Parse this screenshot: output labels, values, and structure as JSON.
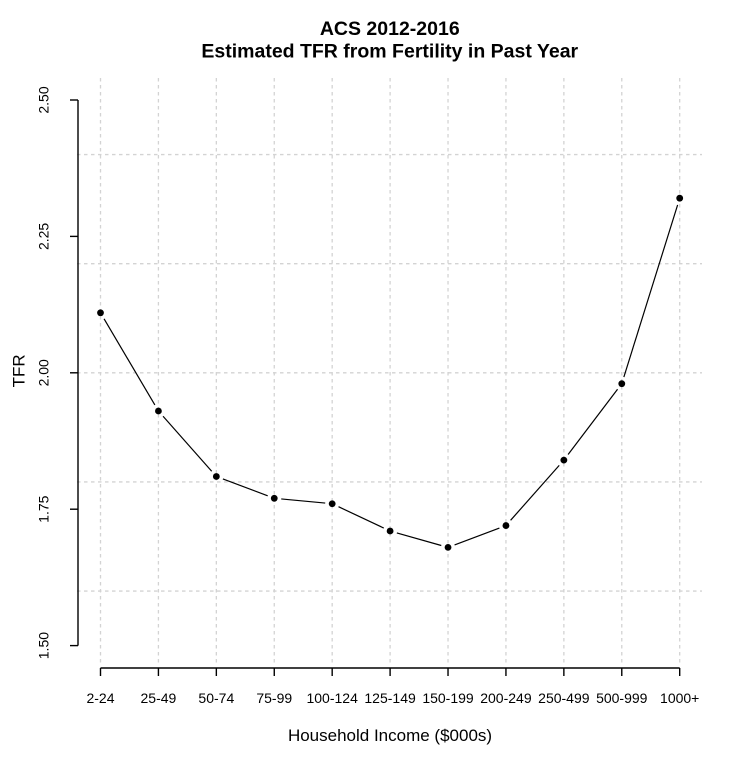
{
  "chart_data": {
    "type": "line",
    "title": "ACS 2012-2016",
    "subtitle": "Estimated TFR from Fertility in Past Year",
    "xlabel": "Household Income ($000s)",
    "ylabel": "TFR",
    "categories": [
      "2-24",
      "25-49",
      "50-74",
      "75-99",
      "100-124",
      "125-149",
      "150-199",
      "200-249",
      "250-499",
      "500-999",
      "1000+"
    ],
    "series": [
      {
        "name": "Estimated TFR",
        "values": [
          2.11,
          1.93,
          1.81,
          1.77,
          1.76,
          1.71,
          1.68,
          1.72,
          1.84,
          1.98,
          2.32
        ]
      }
    ],
    "ylim": [
      1.5,
      2.5
    ],
    "y_tick_labels": [
      "1.50",
      "1.75",
      "2.00",
      "2.25",
      "2.50"
    ],
    "y_tick_values": [
      1.5,
      1.75,
      2.0,
      2.25,
      2.5
    ],
    "grid": true,
    "grid_y_values": [
      1.6,
      1.8,
      2.0,
      2.2,
      2.4
    ],
    "grid_x_at_categories": true,
    "legend_position": "none",
    "style": {
      "background": "#ffffff",
      "text_color": "#000000",
      "axis_color": "#000000",
      "line_color": "#000000",
      "marker": "filled-circle",
      "marker_color": "#000000",
      "grid_color": "#d3d3d3",
      "grid_style": "dashed"
    }
  }
}
